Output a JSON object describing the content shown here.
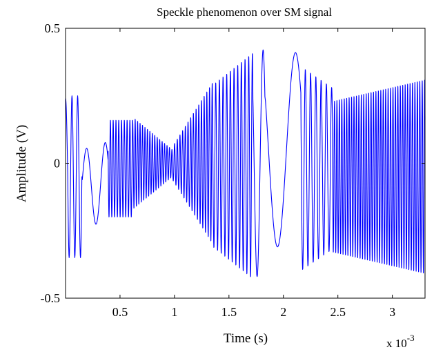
{
  "chart_data": {
    "type": "line",
    "title": "Speckle phenomenon over SM signal",
    "xlabel": "Time (s)",
    "ylabel": "Amplitude (V)",
    "x_scale_text": "x 10",
    "x_scale_exponent": "-3",
    "x_multiplier": 0.001,
    "xlim": [
      0.0,
      0.0033
    ],
    "ylim": [
      -0.5,
      0.5
    ],
    "xticks": [
      0.0005,
      0.001,
      0.0015,
      0.002,
      0.0025,
      0.003
    ],
    "xtick_labels": [
      "0.5",
      "1",
      "1.5",
      "2",
      "2.5",
      "3"
    ],
    "yticks": [
      -0.5,
      0,
      0.5
    ],
    "ytick_labels": [
      "-0.5",
      "0",
      "0.5"
    ],
    "grid": false,
    "legend": "none",
    "series": [
      {
        "color": "#0000ff",
        "segments": [
          {
            "t_start": 0.0,
            "t_end": 2e-05,
            "cycles": 0.25,
            "amp_start": 0.28,
            "amp_end": 0.28,
            "offset": -0.04
          },
          {
            "t_start": 2e-05,
            "t_end": 0.00015,
            "cycles": 2.5,
            "amp_start": 0.3,
            "amp_end": 0.3,
            "offset": -0.05
          },
          {
            "t_start": 0.00015,
            "t_end": 0.00039,
            "cycles": 1.4,
            "amp_start": 0.13,
            "amp_end": 0.16,
            "offset": -0.08
          },
          {
            "t_start": 0.00039,
            "t_end": 0.00062,
            "cycles": 9,
            "amp_start": 0.18,
            "amp_end": 0.18,
            "offset": -0.02
          },
          {
            "t_start": 0.00062,
            "t_end": 0.00098,
            "cycles": 16,
            "amp_start": 0.17,
            "amp_end": 0.05,
            "offset": 0.0
          },
          {
            "t_start": 0.00098,
            "t_end": 0.00135,
            "cycles": 15,
            "amp_start": 0.06,
            "amp_end": 0.3,
            "offset": 0.0
          },
          {
            "t_start": 0.00135,
            "t_end": 0.00172,
            "cycles": 11,
            "amp_start": 0.3,
            "amp_end": 0.42,
            "offset": -0.01
          },
          {
            "t_start": 0.00172,
            "t_end": 0.00183,
            "cycles": 1,
            "amp_start": 0.42,
            "amp_end": 0.42,
            "offset": 0.0
          },
          {
            "t_start": 0.00183,
            "t_end": 0.00216,
            "cycles": 1,
            "amp_start": 0.36,
            "amp_end": 0.36,
            "offset": 0.05
          },
          {
            "t_start": 0.00216,
            "t_end": 0.00245,
            "cycles": 6,
            "amp_start": 0.38,
            "amp_end": 0.3,
            "offset": -0.02
          },
          {
            "t_start": 0.00245,
            "t_end": 0.0033,
            "cycles": 38,
            "amp_start": 0.28,
            "amp_end": 0.36,
            "offset": -0.05
          }
        ]
      }
    ]
  }
}
